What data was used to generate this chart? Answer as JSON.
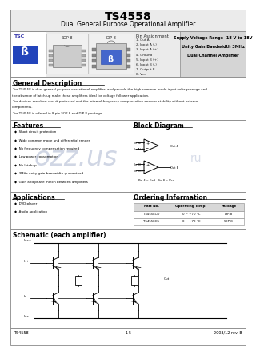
{
  "title": "TS4558",
  "subtitle": "Dual General Purpose Operational Amplifier",
  "header_bg": "#e8e8e8",
  "body_bg": "#ffffff",
  "pin_assignment_title": "Pin Assignment",
  "pin_assignment": [
    "1. Out A",
    "2. Input A (-)",
    "3. Input A (+)",
    "4. Ground",
    "5. Input B (+)",
    "6. Input B (-)",
    "7. Output B",
    "8. Vcc"
  ],
  "package_labels": [
    "SOP-8",
    "DIP-8"
  ],
  "supply_lines": [
    "Supply Voltage Range -18 V to 18V",
    "Unity Gain Bandwidth 3MHz",
    "Dual Channel Amplifier"
  ],
  "general_desc_title": "General Description",
  "general_desc_lines": [
    "The TS4558 is dual general purpose operational amplifier, and provide the high common-mode input voltage range and",
    "the absence of latch-up make these amplifiers ideal for voltage follower application.",
    "The devices are short circuit protected and the internal frequency compensation ensures stability without external",
    "components.",
    "The TS4558 is offered in 8 pin SOP-8 and DIP-8 package."
  ],
  "features_title": "Features",
  "features": [
    "Short circuit protection",
    "Wide common mode and differential ranges",
    "No frequency compensation required",
    "Low power consumption",
    "No latchup",
    "3MHz unity gain bandwidth guaranteed",
    "Gain and phase match between amplifiers"
  ],
  "block_diag_title": "Block Diagram",
  "applications_title": "Applications",
  "applications": [
    "DVD player",
    "Audio application"
  ],
  "ordering_title": "Ordering Information",
  "ordering_headers": [
    "Part No.",
    "Operating Temp.",
    "Package"
  ],
  "ordering_rows": [
    [
      "TS4558CD",
      "0 ~ +70 °C",
      "DIP-8"
    ],
    [
      "TS4558CS",
      "0 ~ +70 °C",
      "SOP-8"
    ]
  ],
  "schematic_title": "Schematic (each amplifier)",
  "footer_left": "TS4558",
  "footer_center": "1-5",
  "footer_right": "2003/12 rev. B",
  "watermark_color": "#c8cfe0"
}
